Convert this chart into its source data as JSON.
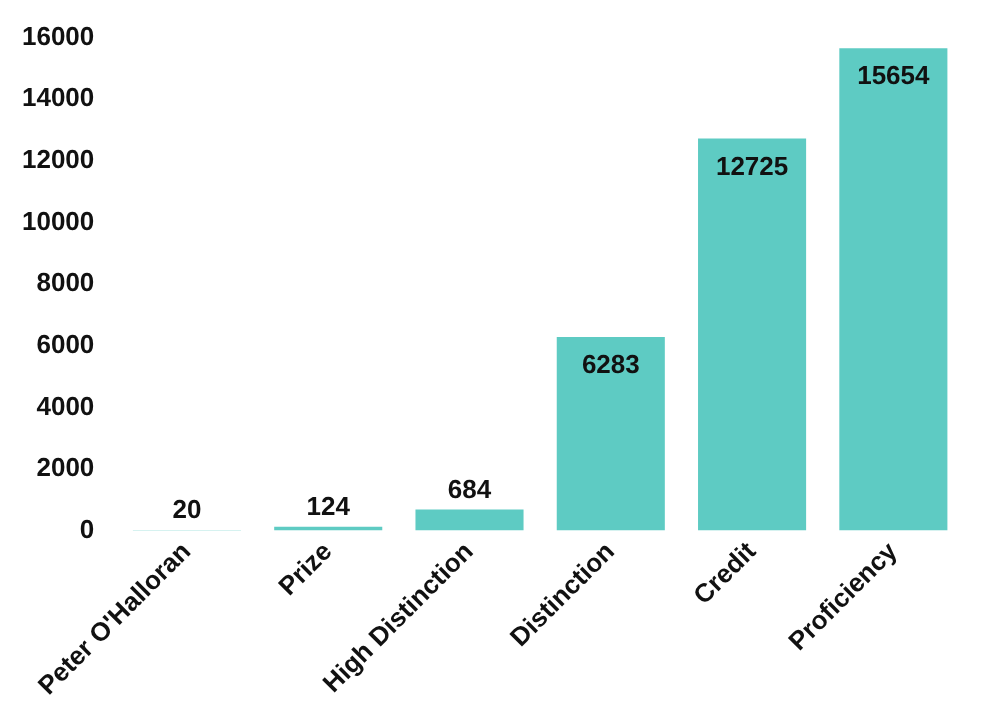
{
  "chart_data": {
    "type": "bar",
    "categories": [
      "Peter O'Halloran",
      "Prize",
      "High Distinction",
      "Distinction",
      "Credit",
      "Proficiency"
    ],
    "series": [
      {
        "color": "#5ecbc3",
        "values": [
          20,
          124,
          684,
          6283,
          12725,
          15654
        ]
      }
    ],
    "ylim": [
      0,
      16000
    ],
    "yticks": [
      0,
      2000,
      4000,
      6000,
      8000,
      10000,
      12000,
      14000,
      16000
    ],
    "grid": false,
    "legend": false,
    "data_labels": true
  }
}
